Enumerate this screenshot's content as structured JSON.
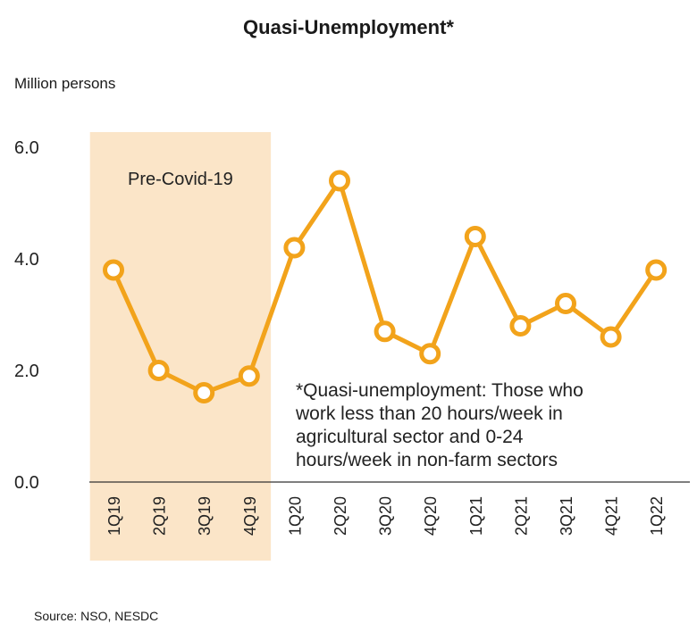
{
  "chart_data": {
    "type": "line",
    "title": "Quasi-Unemployment*",
    "ylabel": "Million persons",
    "xlabel": "",
    "ylim": [
      0,
      6
    ],
    "yticks": [
      "0.0",
      "2.0",
      "4.0",
      "6.0"
    ],
    "categories": [
      "1Q19",
      "2Q19",
      "3Q19",
      "4Q19",
      "1Q20",
      "2Q20",
      "3Q20",
      "4Q20",
      "1Q21",
      "2Q21",
      "3Q21",
      "4Q21",
      "1Q22"
    ],
    "series": [
      {
        "name": "Quasi-unemployment",
        "values": [
          3.8,
          2.0,
          1.6,
          1.9,
          4.2,
          5.4,
          2.7,
          2.3,
          4.4,
          2.8,
          3.2,
          2.6,
          3.8
        ]
      }
    ],
    "shaded_region": {
      "label": "Pre-Covid-19",
      "from": "1Q19",
      "to": "4Q19"
    },
    "annotation": [
      "*Quasi-unemployment: Those who",
      "work less than 20 hours/week in",
      "agricultural sector and 0-24",
      "hours/week in non-farm sectors"
    ],
    "source": "Source:  NSO, NESDC",
    "colors": {
      "line": "#F2A31B",
      "band": "#FBE5C8",
      "axis": "#333333"
    }
  }
}
